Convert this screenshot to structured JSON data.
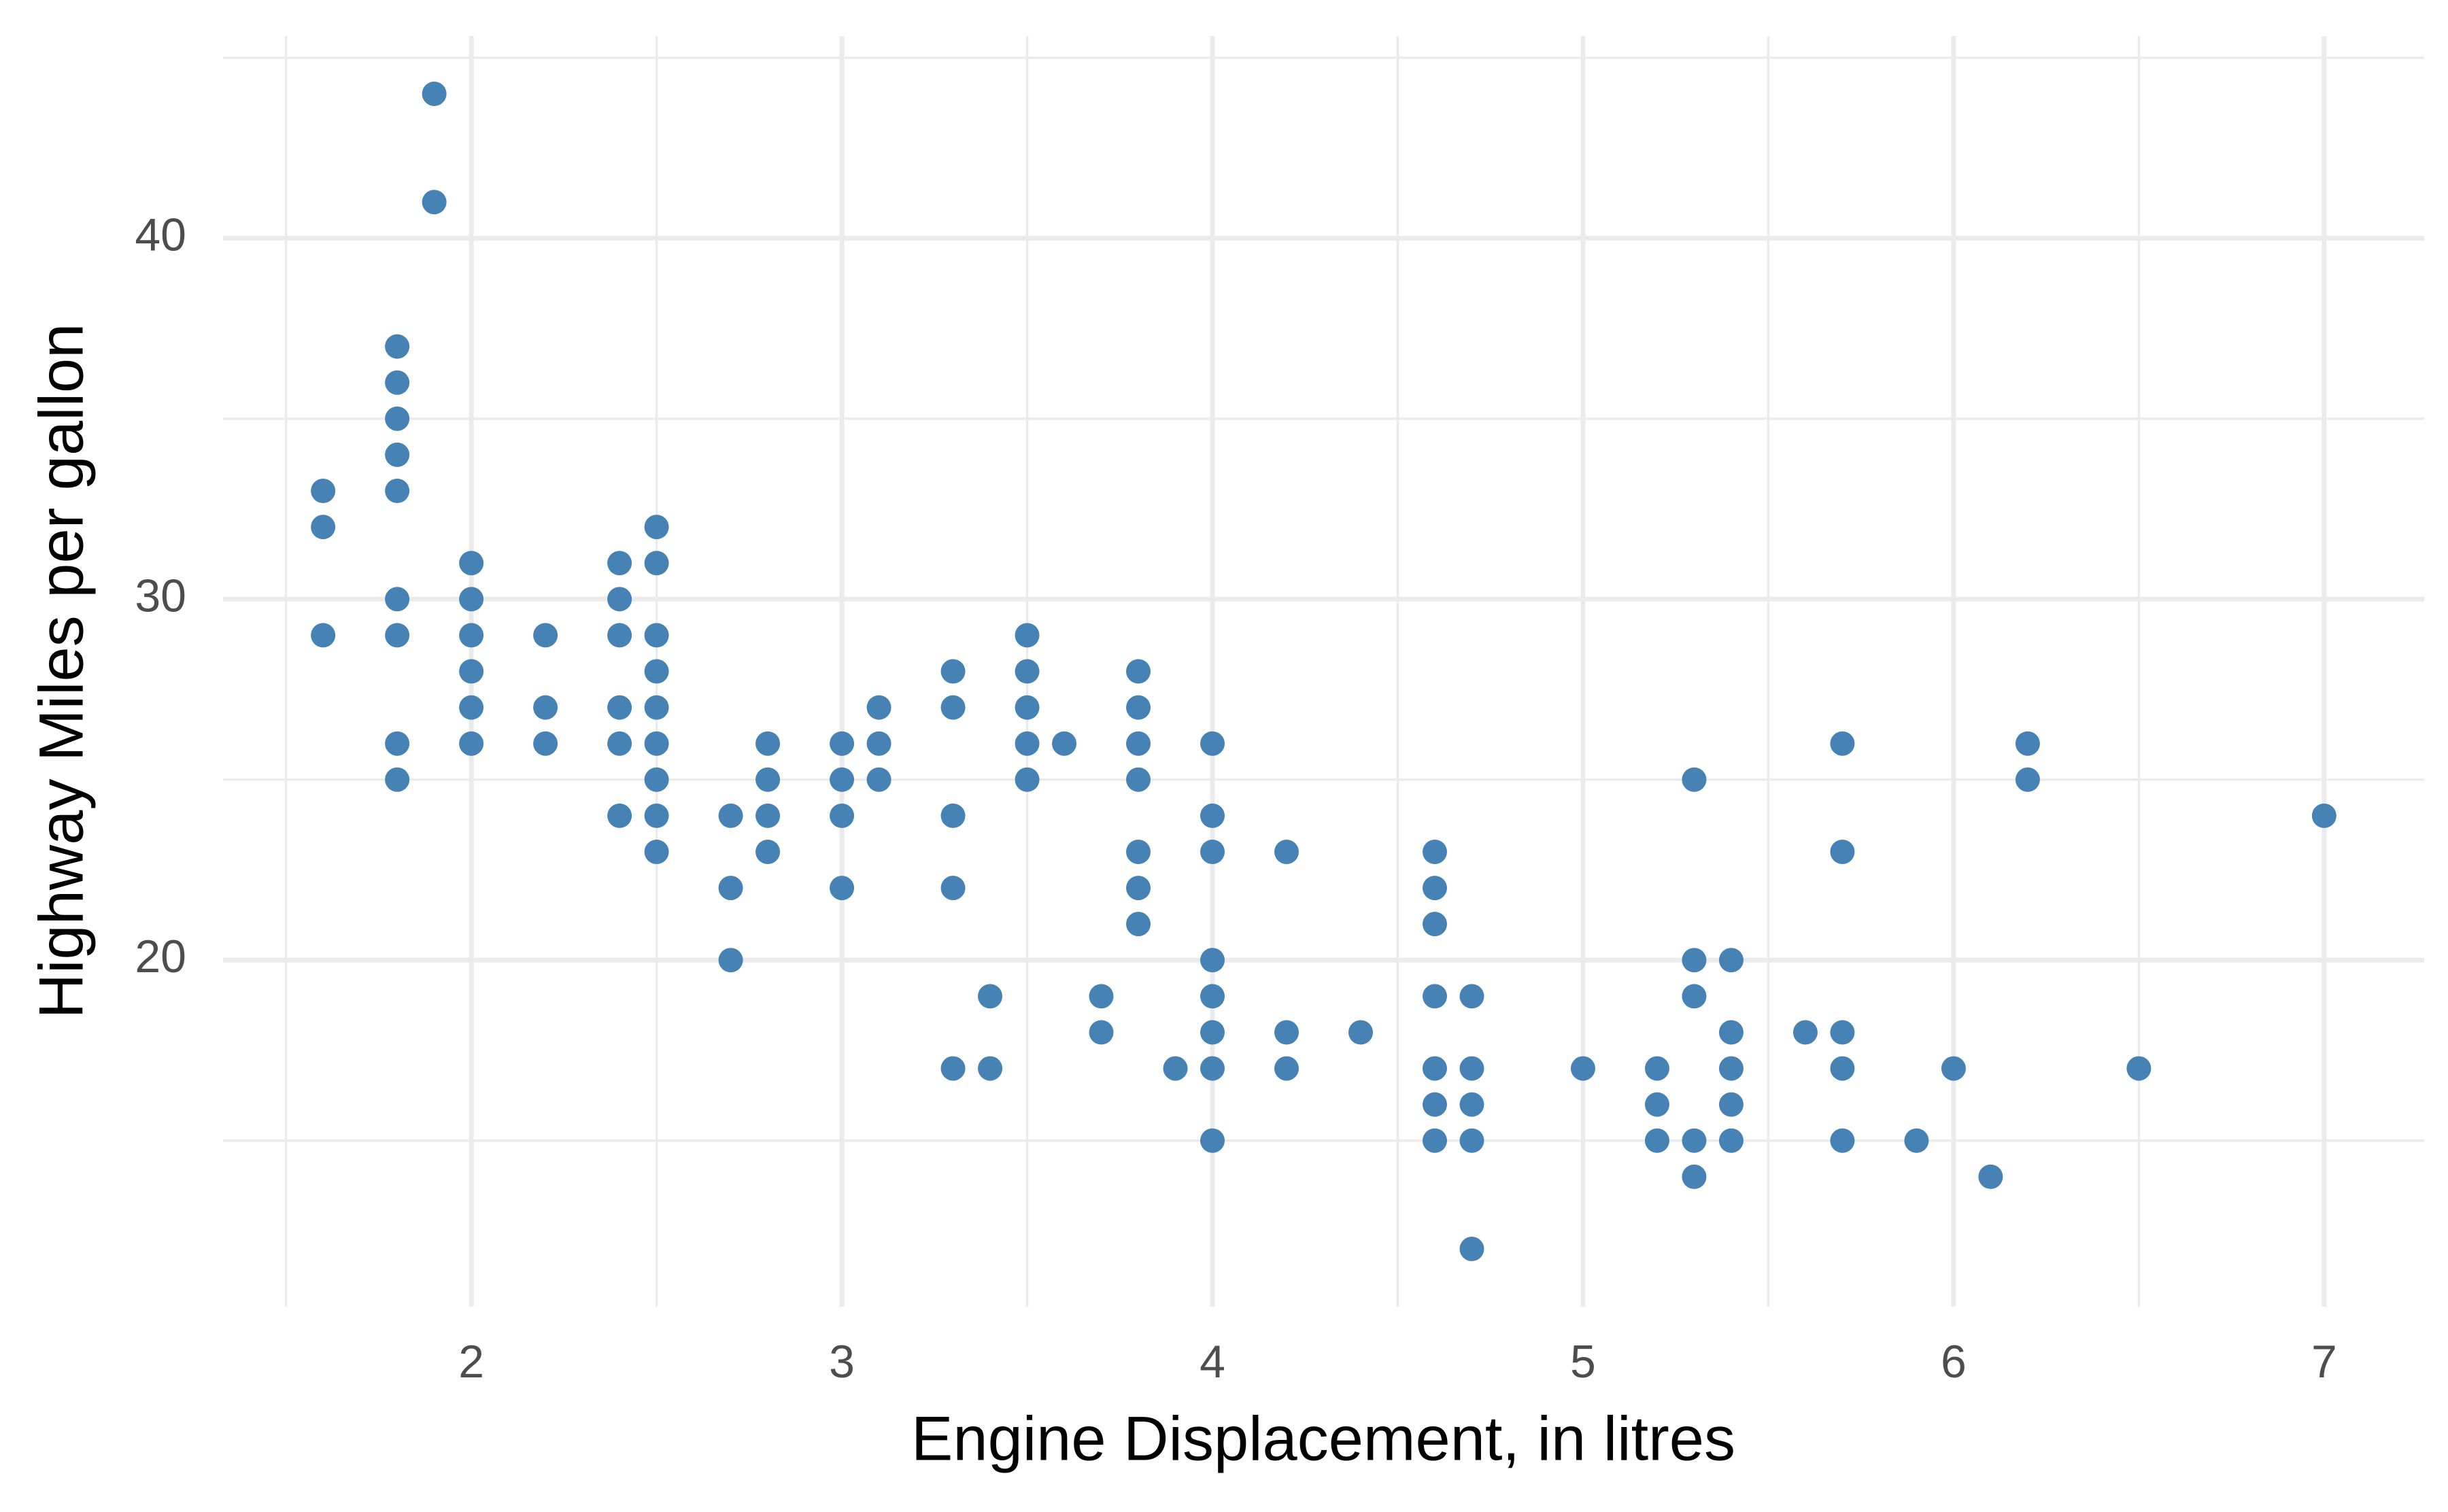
{
  "chart_data": {
    "type": "scatter",
    "x_label": "Engine Displacement, in litres",
    "y_label": "Highway Miles per gallon",
    "xlim": [
      1.33,
      7.27
    ],
    "ylim": [
      10.4,
      45.6
    ],
    "xticks": [
      2,
      3,
      4,
      5,
      6,
      7
    ],
    "yticks": [
      20,
      30,
      40
    ],
    "minor_xticks": [
      1.5,
      2.5,
      3.5,
      4.5,
      5.5,
      6.5
    ],
    "minor_yticks": [
      15,
      25,
      35,
      45
    ],
    "grid": true,
    "series": [
      {
        "color": "#4682b4",
        "x": [
          1.6,
          1.6,
          1.6,
          1.8,
          1.8,
          1.8,
          1.8,
          1.8,
          1.8,
          1.8,
          1.8,
          1.8,
          1.9,
          1.9,
          2.0,
          2.0,
          2.0,
          2.0,
          2.0,
          2.0,
          2.2,
          2.2,
          2.2,
          2.4,
          2.4,
          2.4,
          2.4,
          2.4,
          2.4,
          2.5,
          2.5,
          2.5,
          2.5,
          2.5,
          2.5,
          2.5,
          2.5,
          2.5,
          2.7,
          2.7,
          2.7,
          2.8,
          2.8,
          2.8,
          2.8,
          3.0,
          3.0,
          3.0,
          3.0,
          3.1,
          3.1,
          3.1,
          3.3,
          3.3,
          3.3,
          3.3,
          3.3,
          3.4,
          3.4,
          3.5,
          3.5,
          3.5,
          3.5,
          3.5,
          3.6,
          3.7,
          3.7,
          3.8,
          3.8,
          3.8,
          3.8,
          3.8,
          3.8,
          3.8,
          3.9,
          4.0,
          4.0,
          4.0,
          4.0,
          4.0,
          4.0,
          4.0,
          4.0,
          4.2,
          4.2,
          4.2,
          4.4,
          4.6,
          4.6,
          4.6,
          4.6,
          4.6,
          4.6,
          4.6,
          4.7,
          4.7,
          4.7,
          4.7,
          4.7,
          5.0,
          5.2,
          5.2,
          5.2,
          5.3,
          5.3,
          5.3,
          5.3,
          5.3,
          5.4,
          5.4,
          5.4,
          5.4,
          5.4,
          5.6,
          5.7,
          5.7,
          5.7,
          5.7,
          5.7,
          5.9,
          6.0,
          6.1,
          6.2,
          6.2,
          6.5,
          7.0
        ],
        "values": [
          33,
          32,
          29,
          37,
          36,
          35,
          34,
          33,
          30,
          29,
          26,
          25,
          44,
          41,
          31,
          30,
          29,
          28,
          27,
          26,
          29,
          27,
          26,
          31,
          30,
          29,
          27,
          26,
          24,
          32,
          31,
          29,
          28,
          27,
          26,
          25,
          24,
          23,
          24,
          22,
          20,
          26,
          25,
          24,
          23,
          26,
          25,
          24,
          22,
          27,
          26,
          25,
          28,
          27,
          24,
          22,
          17,
          19,
          17,
          29,
          28,
          27,
          26,
          25,
          26,
          19,
          18,
          28,
          27,
          26,
          25,
          23,
          22,
          21,
          17,
          26,
          24,
          23,
          20,
          19,
          18,
          17,
          15,
          23,
          18,
          17,
          18,
          23,
          22,
          21,
          19,
          17,
          16,
          15,
          19,
          17,
          16,
          15,
          12,
          17,
          17,
          16,
          15,
          25,
          20,
          19,
          15,
          14,
          20,
          18,
          17,
          16,
          15,
          18,
          26,
          23,
          18,
          17,
          15,
          15,
          17,
          14,
          26,
          25,
          17,
          24
        ]
      }
    ]
  }
}
